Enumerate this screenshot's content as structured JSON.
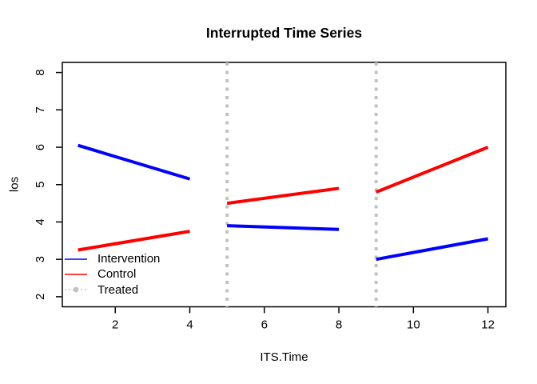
{
  "chart_data": {
    "type": "line",
    "title": "Interrupted Time Series",
    "xlabel": "ITS.Time",
    "ylabel": "los",
    "xlim": [
      0.58,
      12.48
    ],
    "ylim": [
      1.73,
      8.27
    ],
    "xticks": [
      2,
      4,
      6,
      8,
      10,
      12
    ],
    "yticks": [
      2,
      3,
      4,
      5,
      6,
      7,
      8
    ],
    "grid": false,
    "background": "#ffffff",
    "axis_color": "#000000",
    "series": [
      {
        "name": "Intervention",
        "color": "#0000ff",
        "style": "solid",
        "segments": [
          {
            "x": [
              1,
              4
            ],
            "y": [
              6.05,
              5.15
            ]
          },
          {
            "x": [
              5,
              8
            ],
            "y": [
              3.9,
              3.8
            ]
          },
          {
            "x": [
              9,
              12
            ],
            "y": [
              3.0,
              3.55
            ]
          }
        ]
      },
      {
        "name": "Control",
        "color": "#ff0000",
        "style": "solid",
        "segments": [
          {
            "x": [
              1,
              4
            ],
            "y": [
              3.25,
              3.75
            ]
          },
          {
            "x": [
              5,
              8
            ],
            "y": [
              4.5,
              4.9
            ]
          },
          {
            "x": [
              9,
              12
            ],
            "y": [
              4.8,
              6.0
            ]
          }
        ]
      }
    ],
    "treatment_lines": {
      "name": "Treated",
      "color": "#c2c2c2",
      "style": "dotted",
      "x": [
        5,
        9
      ]
    },
    "legend": {
      "position": "bottomleft",
      "entries": [
        {
          "label": "Intervention",
          "color": "#0000ff",
          "line": "solid",
          "marker": false
        },
        {
          "label": "Control",
          "color": "#ff0000",
          "line": "solid",
          "marker": false
        },
        {
          "label": "Treated",
          "color": "#c2c2c2",
          "line": "dotted",
          "marker": true
        }
      ]
    }
  }
}
